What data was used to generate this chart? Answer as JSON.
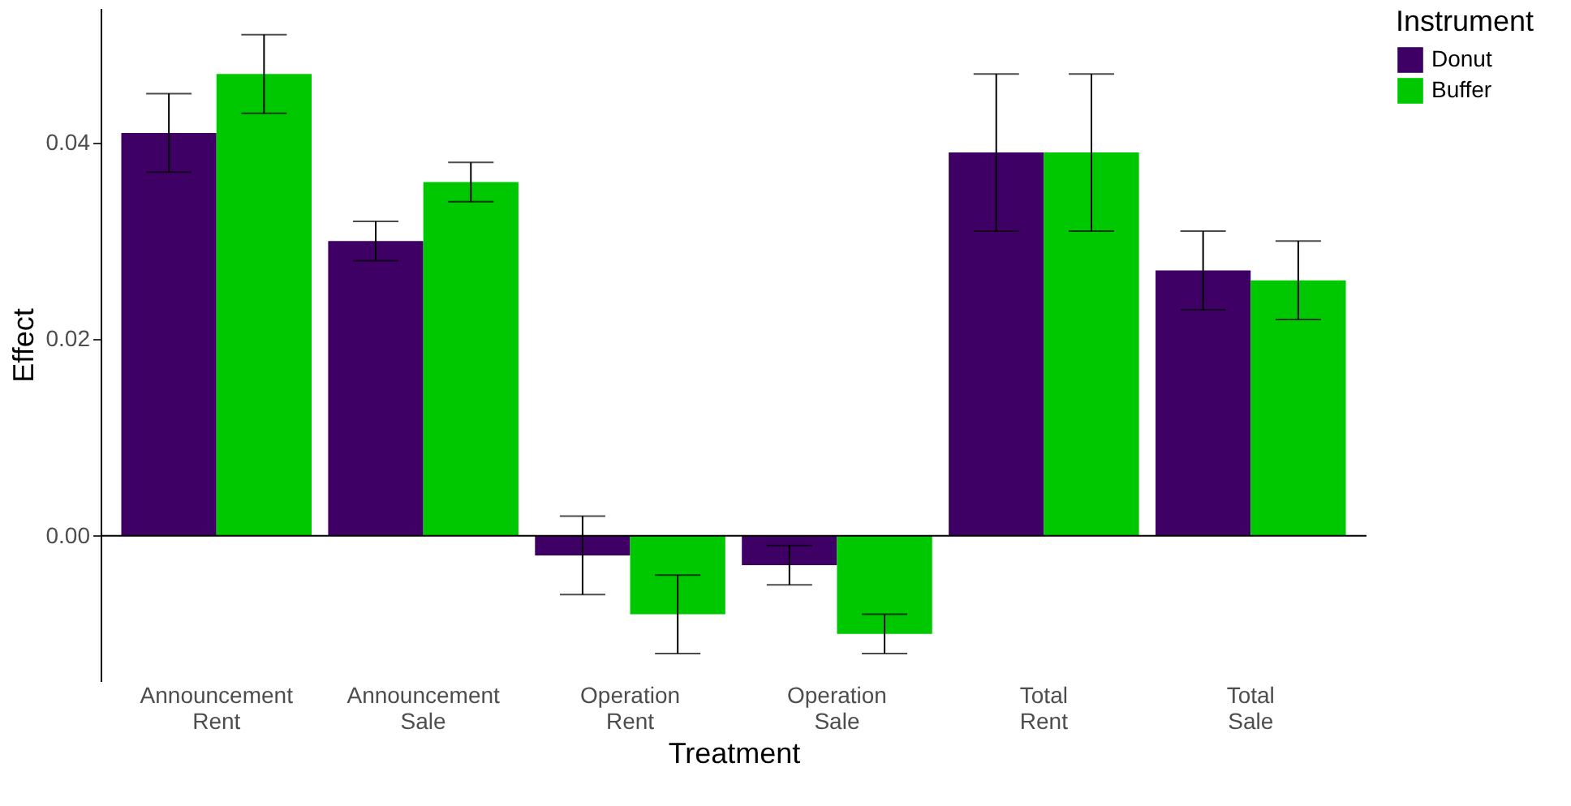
{
  "chart_data": {
    "type": "bar",
    "xlabel": "Treatment",
    "ylabel": "Effect",
    "legend_title": "Instrument",
    "legend": "right",
    "categories": [
      "Announcement\nRent",
      "Announcement\nSale",
      "Operation\nRent",
      "Operation\nSale",
      "Total\nRent",
      "Total\nSale"
    ],
    "series": [
      {
        "name": "Donut",
        "color": "#3f0066",
        "values": [
          0.041,
          0.03,
          -0.002,
          -0.003,
          0.039,
          0.027
        ],
        "errors": [
          0.004,
          0.002,
          0.004,
          0.002,
          0.008,
          0.004
        ]
      },
      {
        "name": "Buffer",
        "color": "#00c800",
        "values": [
          0.047,
          0.036,
          -0.008,
          -0.01,
          0.039,
          0.026
        ],
        "errors": [
          0.004,
          0.002,
          0.004,
          0.002,
          0.008,
          0.004
        ]
      }
    ],
    "ylim": [
      -0.0148,
      0.0537
    ],
    "yticks": [
      {
        "value": 0,
        "label": "0.00"
      },
      {
        "value": 0.02,
        "label": "0.02"
      },
      {
        "value": 0.04,
        "label": "0.04"
      }
    ],
    "ref_lines": [
      {
        "axis": "y",
        "value": 0,
        "color": "#000000"
      }
    ],
    "grid": false
  }
}
